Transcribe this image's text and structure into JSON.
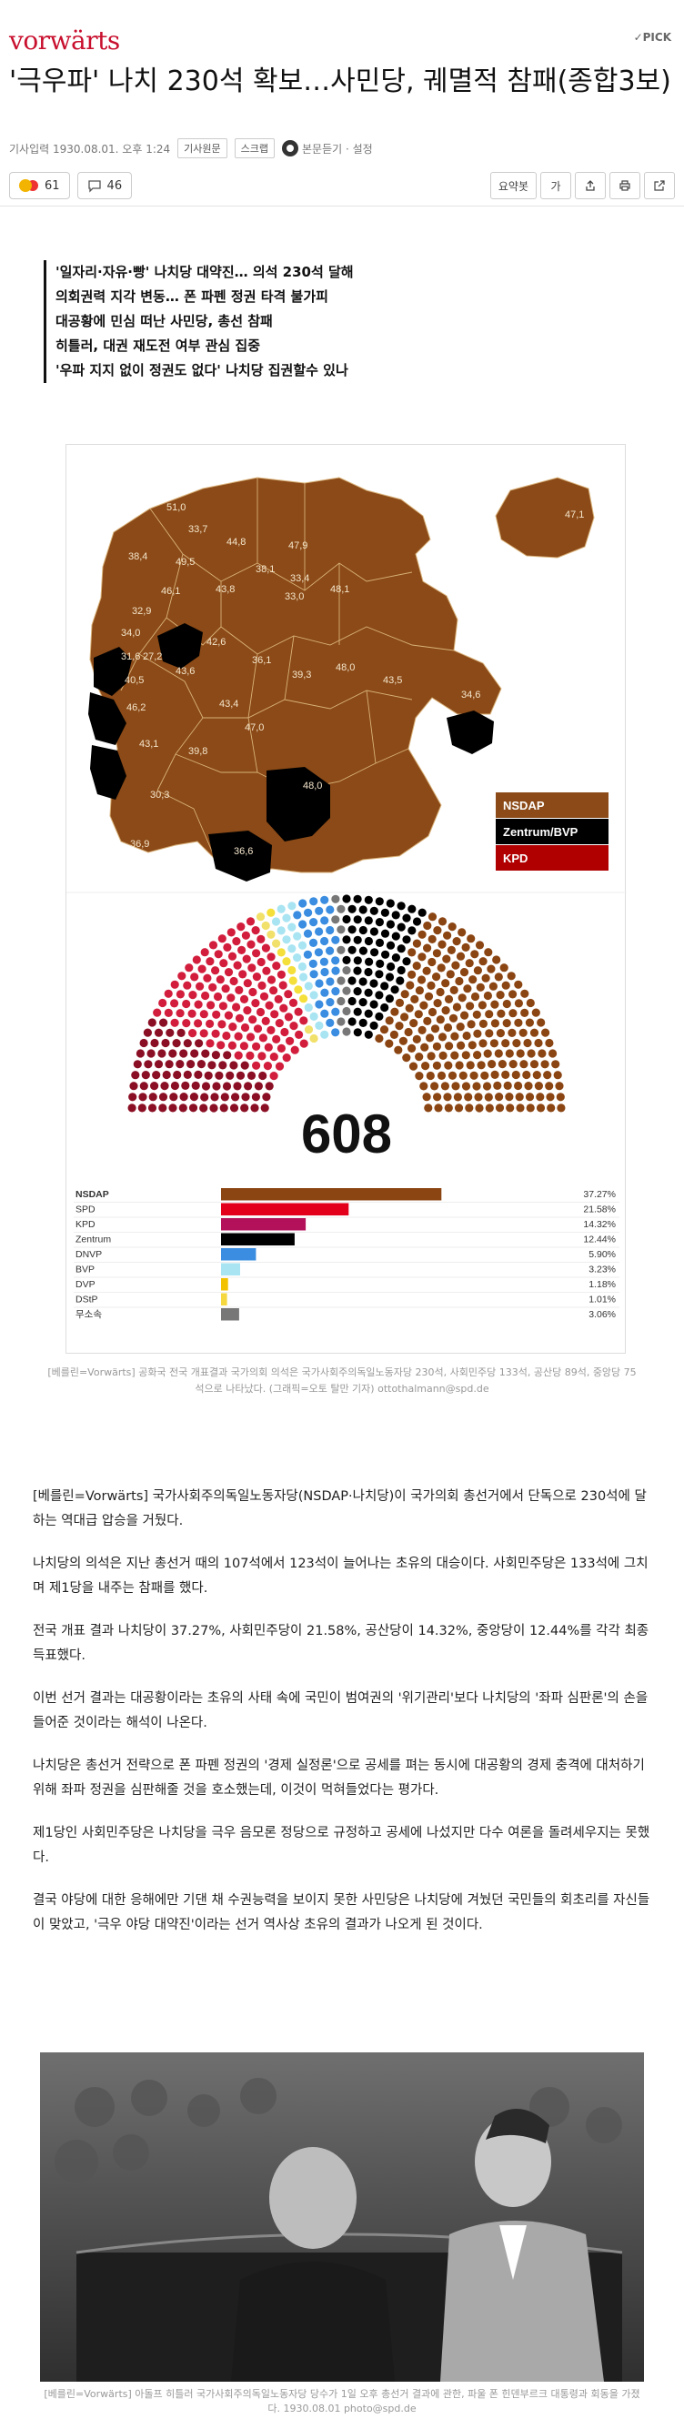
{
  "header": {
    "logo": "vorwärts",
    "pick_label": "PICK",
    "headline": "'극우파' 나치 230석 확보…사민당, 궤멸적 참패(종합3보)"
  },
  "meta": {
    "date": "기사입력 1930.08.01. 오후 1:24",
    "tag1": "기사원문",
    "tag2": "스크랩",
    "subtitle": "본문듣기 · 설정"
  },
  "reactions": {
    "emoji_count": "61",
    "comment_count": "46",
    "summary_btn": "요약봇",
    "font_btn": "가"
  },
  "summary_lines": [
    "'일자리·자유·빵' 나치당 대약진… 의석 230석 달해",
    "의회권력 지각 변동… 폰 파펜 정권 타격 불가피",
    "대공황에 민심 떠난 사민당, 총선 참패",
    "히틀러, 대권 재도전 여부 관심 집중",
    "'우파 지지 없이 정권도 없다' 나치당 집권할수 있나"
  ],
  "map": {
    "labels": [
      "51,0",
      "33,7",
      "44,8",
      "47,9",
      "47,1",
      "38,4",
      "49,5",
      "38,1",
      "33,4",
      "46,1",
      "43,8",
      "33,0",
      "48,1",
      "32,9",
      "34,0",
      "31,6",
      "27,2",
      "42,6",
      "40,5",
      "43,6",
      "36,1",
      "39,3",
      "48,0",
      "43,5",
      "34,6",
      "46,2",
      "43,4",
      "47,0",
      "43,1",
      "39,8",
      "48,0",
      "30,3",
      "36,9",
      "36,6"
    ],
    "legend": [
      {
        "label": "NSDAP",
        "color": "#8b4513"
      },
      {
        "label": "Zentrum/BVP",
        "color": "#000000"
      },
      {
        "label": "KPD",
        "color": "#b00000"
      }
    ]
  },
  "parliament": {
    "total": "608",
    "parties": [
      {
        "name": "NSDAP",
        "pct": "37.27%",
        "value": 37.27,
        "seats": 230,
        "color": "#8b4513"
      },
      {
        "name": "SPD",
        "pct": "21.58%",
        "value": 21.58,
        "seats": 133,
        "color": "#e3001b"
      },
      {
        "name": "KPD",
        "pct": "14.32%",
        "value": 14.32,
        "seats": 89,
        "color": "#b3125a"
      },
      {
        "name": "Zentrum",
        "pct": "12.44%",
        "value": 12.44,
        "seats": 75,
        "color": "#000000"
      },
      {
        "name": "DNVP",
        "pct": "5.90%",
        "value": 5.9,
        "seats": 36,
        "color": "#3a8de0"
      },
      {
        "name": "BVP",
        "pct": "3.23%",
        "value": 3.23,
        "seats": 20,
        "color": "#a8e4f2"
      },
      {
        "name": "DVP",
        "pct": "1.18%",
        "value": 1.18,
        "seats": 7,
        "color": "#f2c200"
      },
      {
        "name": "DStP",
        "pct": "1.01%",
        "value": 1.01,
        "seats": 6,
        "color": "#f5d840"
      },
      {
        "name": "무소속",
        "pct": "3.06%",
        "value": 3.06,
        "seats": 12,
        "color": "#777777"
      }
    ]
  },
  "caption1": "[베를린=Vorwärts] 공화국 전국 개표결과 국가의회 의석은 국가사회주의독일노동자당 230석, 사회민주당 133석, 공산당 89석, 중앙당 75석으로 나타났다. (그래픽=오토 탈만 기자) ottothalmann@spd.de",
  "body": [
    "[베를린=Vorwärts] 국가사회주의독일노동자당(NSDAP·나치당)이 국가의회 총선거에서 단독으로 230석에 달하는 역대급 압승을 거뒀다.",
    "나치당의 의석은 지난 총선거 때의 107석에서 123석이 늘어나는 초유의 대승이다. 사회민주당은 133석에 그치며 제1당을 내주는 참패를 했다.",
    "전국 개표 결과 나치당이 37.27%, 사회민주당이 21.58%, 공산당이 14.32%, 중앙당이 12.44%를 각각 최종 득표했다.",
    "이번 선거 결과는 대공황이라는 초유의 사태 속에 국민이 범여권의 '위기관리'보다 나치당의 '좌파 심판론'의 손을 들어준 것이라는 해석이 나온다.",
    "나치당은 총선거 전략으로 폰 파펜 정권의 '경제 실정론'으로 공세를 펴는 동시에 대공황의 경제 충격에 대처하기 위해 좌파 정권을 심판해줄 것을 호소했는데, 이것이 먹혀들었다는 평가다.",
    "제1당인 사회민주당은 나치당을 극우 음모론 정당으로 규정하고 공세에 나섰지만 다수 여론을 돌려세우지는 못했다.",
    "결국 야당에 대한 응해에만 기댄 채 수권능력을 보이지 못한 사민당은 나치당에 겨눴던 국민들의 회초리를 자신들이 맞았고, '극우 야당 대약진'이라는 선거 역사상 초유의 결과가 나오게 된 것이다."
  ],
  "caption2": "[베를린=Vorwärts] 아돌프 히틀러 국가사회주의독일노동자당 당수가 1일 오후 총선거 결과에 관한, 파울 폰 힌덴부르크 대통령과 회동을 가졌다. 1930.08.01 photo@spd.de"
}
